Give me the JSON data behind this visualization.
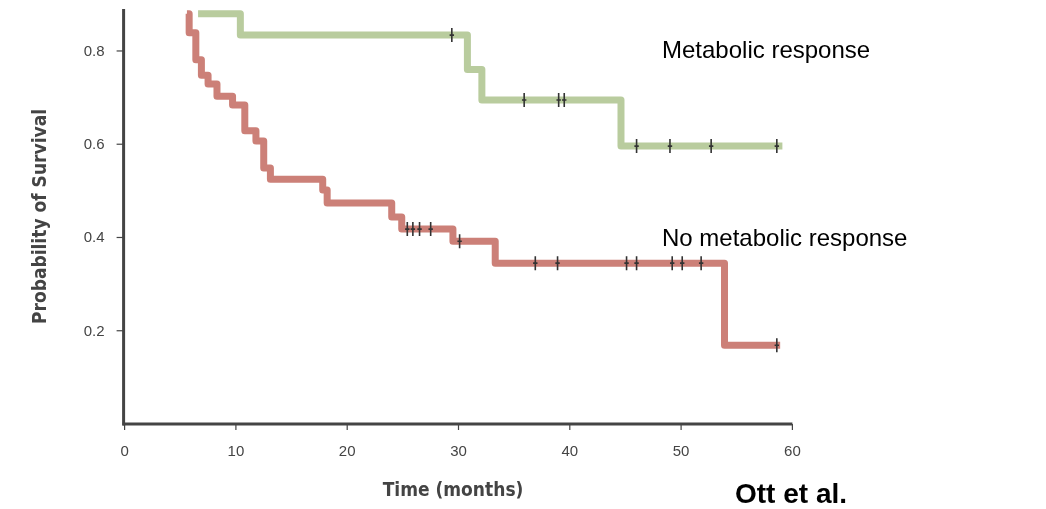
{
  "chart_data": {
    "type": "step",
    "xlabel": "Time (months)",
    "ylabel": "Probability of Survival",
    "xlim": [
      0,
      60
    ],
    "ylim": [
      0,
      0.89
    ],
    "xticks": [
      0,
      10,
      20,
      30,
      40,
      50,
      60
    ],
    "yticks": [
      0.2,
      0.4,
      0.6,
      0.8
    ],
    "grid": false,
    "legend": false,
    "line_style": "solid",
    "annotations": [
      "Ott et al."
    ],
    "series": [
      {
        "name": "Metabolic response",
        "color": "#b9cc9e",
        "x": [
          6.6,
          10.4,
          30.8,
          32.1,
          44.6,
          59.1
        ],
        "values": [
          0.88,
          0.834,
          0.76,
          0.695,
          0.596,
          0.596
        ]
      },
      {
        "name": "No metabolic response",
        "color": "#cc8078",
        "x": [
          5.6,
          5.8,
          6.4,
          6.9,
          7.5,
          8.3,
          9.7,
          10.8,
          11.8,
          12.5,
          13.1,
          17.8,
          18.2,
          24.0,
          24.9,
          29.5,
          33.3,
          53.9,
          58.9
        ],
        "values": [
          0.88,
          0.839,
          0.781,
          0.748,
          0.729,
          0.703,
          0.684,
          0.629,
          0.607,
          0.549,
          0.525,
          0.502,
          0.474,
          0.444,
          0.418,
          0.392,
          0.345,
          0.169,
          0.169
        ]
      },
      {
        "type": "scatter",
        "marker": "cross",
        "color": "#333333",
        "x": [
          29.4,
          35.9,
          39.0,
          39.5,
          46.0,
          49.0,
          52.7,
          58.6
        ],
        "values": [
          0.834,
          0.695,
          0.695,
          0.695,
          0.596,
          0.596,
          0.596,
          0.596
        ]
      },
      {
        "type": "scatter",
        "marker": "cross",
        "color": "#333333",
        "x": [
          25.4,
          25.9,
          26.5,
          27.5,
          30.1,
          36.9,
          38.9,
          45.1,
          46.0,
          49.2,
          50.1,
          51.8,
          58.6
        ],
        "values": [
          0.418,
          0.418,
          0.418,
          0.418,
          0.392,
          0.345,
          0.345,
          0.345,
          0.345,
          0.345,
          0.345,
          0.345,
          0.169
        ]
      }
    ]
  }
}
